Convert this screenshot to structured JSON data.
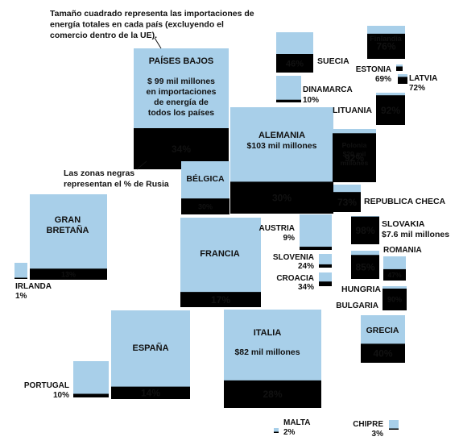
{
  "colors": {
    "light": "#a8cfe9",
    "dark": "#000000",
    "text": "#111111",
    "onDark": "#ffffff"
  },
  "intro_note": [
    "Tamaño cuadrado representa las importaciones de",
    "energía totales en cada país (excluyendo el",
    "comercio dentro de la UE)."
  ],
  "dark_note": [
    "Las zonas negras",
    "representan el % de Rusia"
  ],
  "chart_data": {
    "type": "proportional-area squares (treemap-like map)",
    "title": "",
    "countries": [
      {
        "id": "paises-bajos",
        "name": "PAÍSES BAJOS",
        "russia_pct": 34,
        "pct_label": "34%",
        "detail": [
          "$ 99 mil millones",
          "en importaciones",
          "de energía de",
          "todos los países"
        ]
      },
      {
        "id": "alemania",
        "name": "ALEMANIA",
        "russia_pct": 30,
        "pct_label": "30%",
        "detail": [
          "$103 mil millones"
        ]
      },
      {
        "id": "italia",
        "name": "ITALIA",
        "russia_pct": 28,
        "pct_label": "28%",
        "detail": [
          "$82 mil millones"
        ]
      },
      {
        "id": "francia",
        "name": "FRANCIA",
        "russia_pct": 17,
        "pct_label": "17%",
        "detail": []
      },
      {
        "id": "espana",
        "name": "ESPAÑA",
        "russia_pct": 14,
        "pct_label": "14%",
        "detail": []
      },
      {
        "id": "gran-bretana",
        "name": "GRAN BRETAÑA",
        "russia_pct": 13,
        "pct_label": "13%",
        "detail": []
      },
      {
        "id": "belgica",
        "name": "BÉLGICA",
        "russia_pct": 30,
        "pct_label": "30%",
        "detail": []
      },
      {
        "id": "suecia",
        "name": "SUECIA",
        "russia_pct": 46,
        "pct_label": "46%",
        "detail": []
      },
      {
        "id": "dinamarca",
        "name": "DINAMARCA",
        "russia_pct": 10,
        "pct_label": "10%",
        "detail": []
      },
      {
        "id": "finlandia",
        "name": "Finlandia",
        "russia_pct": 76,
        "pct_label": "76%",
        "detail": []
      },
      {
        "id": "estonia",
        "name": "ESTONIA",
        "russia_pct": 69,
        "pct_label": "69%",
        "detail": []
      },
      {
        "id": "letonia",
        "name": "LATVIA",
        "russia_pct": 72,
        "pct_label": "72%",
        "detail": []
      },
      {
        "id": "lituania",
        "name": "LITUANIA",
        "russia_pct": 92,
        "pct_label": "92%",
        "detail": []
      },
      {
        "id": "polonia",
        "name": "Polonia",
        "russia_pct": 92,
        "pct_label": "92%",
        "detail": [
          "$20 mil",
          "millones"
        ]
      },
      {
        "id": "republica-checa",
        "name": "REPUBLICA CHECA",
        "russia_pct": 73,
        "pct_label": "73%",
        "detail": []
      },
      {
        "id": "eslovaquia",
        "name": "SLOVAKIA",
        "russia_pct": 98,
        "pct_label": "98%",
        "detail": [
          "$7.6 mil millones"
        ]
      },
      {
        "id": "austria",
        "name": "AUSTRIA",
        "russia_pct": 9,
        "pct_label": "9%",
        "detail": []
      },
      {
        "id": "eslovenia",
        "name": "SLOVENIA",
        "russia_pct": 24,
        "pct_label": "24%",
        "detail": []
      },
      {
        "id": "croacia",
        "name": "CROACIA",
        "russia_pct": 34,
        "pct_label": "34%",
        "detail": []
      },
      {
        "id": "hungria",
        "name": "HUNGRIA",
        "russia_pct": 85,
        "pct_label": "85%",
        "detail": []
      },
      {
        "id": "rumania",
        "name": "ROMANIA",
        "russia_pct": 47,
        "pct_label": "47%",
        "detail": []
      },
      {
        "id": "bulgaria",
        "name": "BULGARIA",
        "russia_pct": 90,
        "pct_label": "90%",
        "detail": []
      },
      {
        "id": "grecia",
        "name": "GRECIA",
        "russia_pct": 40,
        "pct_label": "40%",
        "detail": []
      },
      {
        "id": "irlanda",
        "name": "IRLANDA",
        "russia_pct": 1,
        "pct_label": "1%",
        "detail": []
      },
      {
        "id": "portugal",
        "name": "PORTUGAL",
        "russia_pct": 10,
        "pct_label": "10%",
        "detail": []
      },
      {
        "id": "malta",
        "name": "MALTA",
        "russia_pct": 2,
        "pct_label": "2%",
        "detail": []
      },
      {
        "id": "chipre",
        "name": "CHIPRE",
        "russia_pct": 3,
        "pct_label": "3%",
        "detail": []
      }
    ]
  }
}
